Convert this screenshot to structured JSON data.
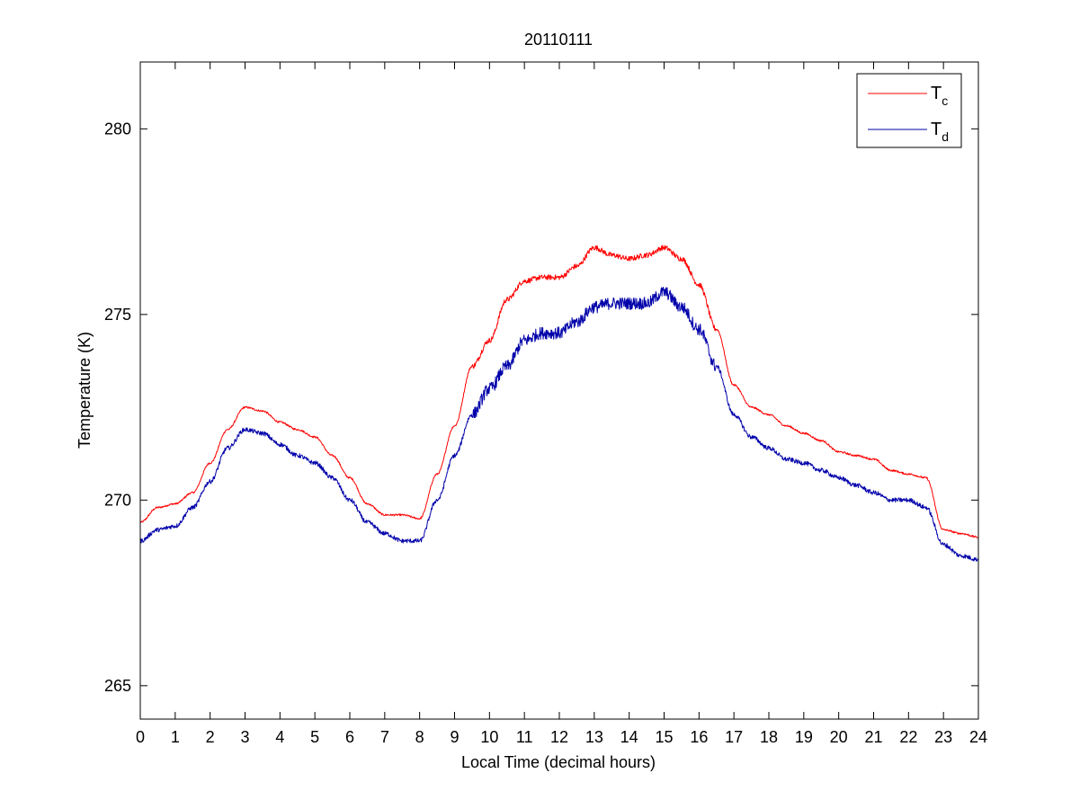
{
  "chart_data": {
    "type": "line",
    "title": "20110111",
    "xlabel": "Local Time (decimal hours)",
    "ylabel": "Temperature (K)",
    "xlim": [
      0,
      24
    ],
    "ylim": [
      264.1,
      281.8
    ],
    "x_ticks": [
      0,
      1,
      2,
      3,
      4,
      5,
      6,
      7,
      8,
      9,
      10,
      11,
      12,
      13,
      14,
      15,
      16,
      17,
      18,
      19,
      20,
      21,
      22,
      23,
      24
    ],
    "y_ticks": [
      265,
      270,
      275,
      280
    ],
    "grid": false,
    "legend_position": "top-right",
    "x": [
      0,
      0.5,
      1,
      1.5,
      2,
      2.5,
      3,
      3.5,
      4,
      4.5,
      5,
      5.5,
      6,
      6.5,
      7,
      7.5,
      8,
      8.5,
      9,
      9.5,
      10,
      10.5,
      11,
      11.5,
      12,
      12.5,
      13,
      13.5,
      14,
      14.5,
      15,
      15.5,
      16,
      16.5,
      17,
      17.5,
      18,
      18.5,
      19,
      19.5,
      20,
      20.5,
      21,
      21.5,
      22,
      22.5,
      23,
      23.5,
      24
    ],
    "series": [
      {
        "name": "T",
        "subscript": "c",
        "color": "#ff0000",
        "values": [
          269.4,
          269.8,
          269.9,
          270.2,
          271.0,
          271.9,
          272.5,
          272.4,
          272.1,
          271.9,
          271.7,
          271.2,
          270.6,
          269.9,
          269.6,
          269.6,
          269.5,
          270.7,
          272.0,
          273.6,
          274.3,
          275.4,
          275.9,
          276.0,
          276.0,
          276.3,
          276.8,
          276.6,
          276.5,
          276.6,
          276.8,
          276.5,
          275.8,
          274.6,
          273.1,
          272.5,
          272.3,
          272.0,
          271.8,
          271.6,
          271.3,
          271.2,
          271.1,
          270.8,
          270.7,
          270.6,
          269.2,
          269.1,
          269.0
        ]
      },
      {
        "name": "T",
        "subscript": "d",
        "color": "#0000aa",
        "values": [
          268.9,
          269.2,
          269.3,
          269.8,
          270.5,
          271.4,
          271.9,
          271.8,
          271.5,
          271.2,
          271.0,
          270.6,
          270.0,
          269.4,
          269.1,
          268.9,
          268.9,
          270.0,
          271.2,
          272.3,
          273.0,
          273.6,
          274.3,
          274.5,
          274.5,
          274.8,
          275.2,
          275.3,
          275.3,
          275.3,
          275.6,
          275.2,
          274.6,
          273.6,
          272.3,
          271.7,
          271.4,
          271.1,
          271.0,
          270.8,
          270.6,
          270.4,
          270.2,
          270.0,
          270.0,
          269.8,
          268.8,
          268.5,
          268.4
        ]
      }
    ]
  }
}
